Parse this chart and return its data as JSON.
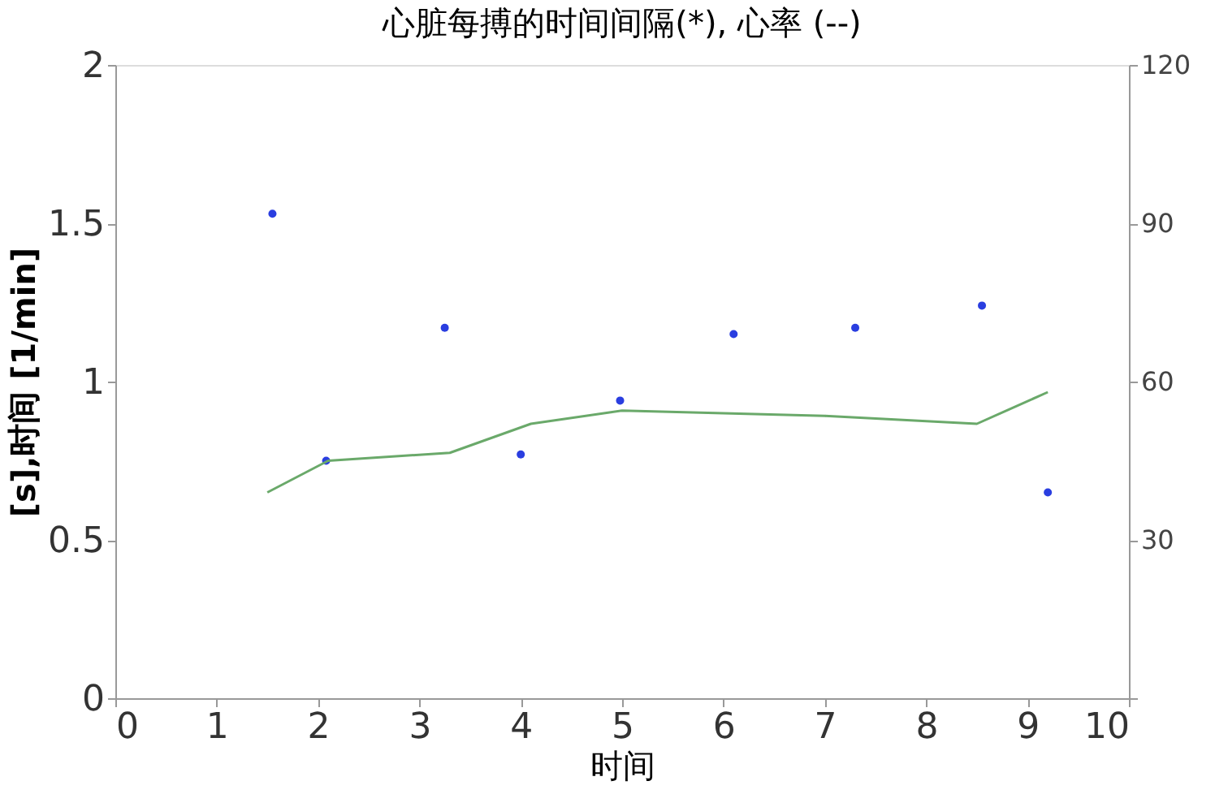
{
  "chart_data": {
    "type": "scatter",
    "title": "心脏每搏的时间间隔(*), 心率 (--)",
    "xlabel": "时间",
    "ylabel": "[s],时间 [1/min]",
    "xlim": [
      0,
      10
    ],
    "xticks": [
      0,
      1,
      2,
      3,
      4,
      5,
      6,
      7,
      8,
      9,
      10
    ],
    "ylim": [
      0,
      2
    ],
    "yticks": [
      0,
      0.5,
      1,
      1.5,
      2
    ],
    "y2lim": [
      0,
      120
    ],
    "y2ticks": [
      {
        "value": 0,
        "label": null
      },
      30,
      60,
      90,
      120
    ],
    "grid": false,
    "series": [
      {
        "marker": "circle",
        "color": "#2a3ee0",
        "x": [
          1.55,
          2.08,
          3.25,
          4.0,
          4.98,
          6.1,
          7.3,
          8.55,
          9.2
        ],
        "values": [
          1.53,
          0.75,
          1.17,
          0.77,
          0.94,
          1.15,
          1.17,
          1.24,
          0.65
        ]
      },
      {
        "type": "line",
        "axis": "y2",
        "line_style": "solid",
        "color": "#6aa96a",
        "x": [
          1.5,
          2.1,
          3.3,
          4.1,
          5.0,
          6.0,
          7.0,
          8.5,
          9.2
        ],
        "values": [
          39,
          45,
          46.5,
          52,
          54.5,
          54,
          53.5,
          52,
          58
        ]
      }
    ]
  }
}
